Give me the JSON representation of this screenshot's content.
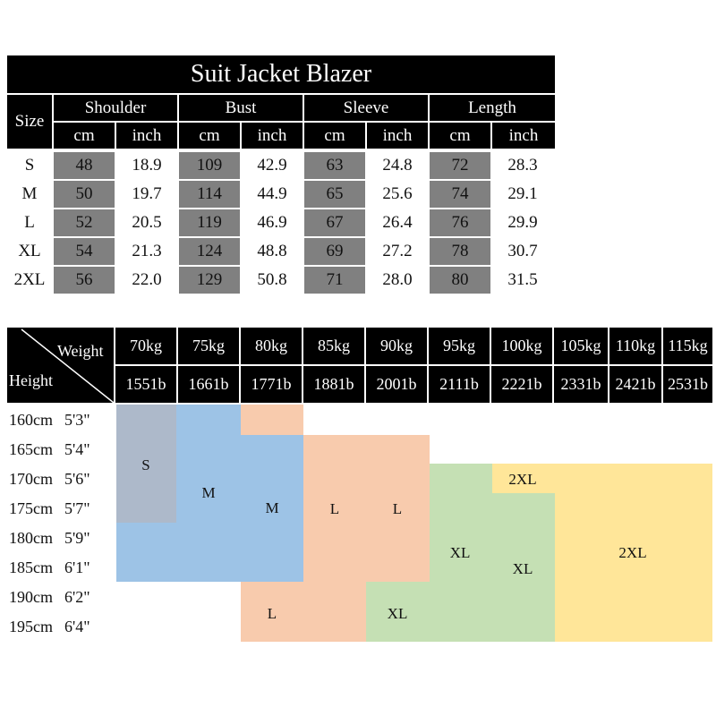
{
  "title": "Suit Jacket Blazer",
  "size_header": "Size",
  "groups": [
    "Shoulder",
    "Bust",
    "Sleeve",
    "Length"
  ],
  "units": [
    "cm",
    "inch"
  ],
  "rows": [
    {
      "size": "S",
      "values": [
        "48",
        "18.9",
        "109",
        "42.9",
        "63",
        "24.8",
        "72",
        "28.3"
      ]
    },
    {
      "size": "M",
      "values": [
        "50",
        "19.7",
        "114",
        "44.9",
        "65",
        "25.6",
        "74",
        "29.1"
      ]
    },
    {
      "size": "L",
      "values": [
        "52",
        "20.5",
        "119",
        "46.9",
        "67",
        "26.4",
        "76",
        "29.9"
      ]
    },
    {
      "size": "XL",
      "values": [
        "54",
        "21.3",
        "124",
        "48.8",
        "69",
        "27.2",
        "78",
        "30.7"
      ]
    },
    {
      "size": "2XL",
      "values": [
        "56",
        "22.0",
        "129",
        "50.8",
        "71",
        "28.0",
        "80",
        "31.5"
      ]
    }
  ],
  "chart": {
    "weight_label": "Weight",
    "height_label": "Height",
    "weights_kg": [
      "70kg",
      "75kg",
      "80kg",
      "85kg",
      "90kg",
      "95kg",
      "100kg",
      "105kg",
      "110kg",
      "115kg"
    ],
    "weights_lb": [
      "1551b",
      "1661b",
      "1771b",
      "1881b",
      "2001b",
      "2111b",
      "2221b",
      "2331b",
      "2421b",
      "2531b"
    ],
    "heights": [
      {
        "cm": "160cm",
        "ft": "5'3\""
      },
      {
        "cm": "165cm",
        "ft": "5'4\""
      },
      {
        "cm": "170cm",
        "ft": "5'6\""
      },
      {
        "cm": "175cm",
        "ft": "5'7\""
      },
      {
        "cm": "180cm",
        "ft": "5'9\""
      },
      {
        "cm": "185cm",
        "ft": "6'1\""
      },
      {
        "cm": "190cm",
        "ft": "6'2\""
      },
      {
        "cm": "195cm",
        "ft": "6'4\""
      }
    ],
    "colors": {
      "S": "#adb9ca",
      "M": "#9dc3e6",
      "L": "#f8cbad",
      "XL": "#c5e0b4",
      "2XL": "#ffe699"
    },
    "zone_labels": [
      "S",
      "M",
      "M",
      "L",
      "L",
      "L",
      "XL",
      "XL",
      "XL",
      "2XL",
      "2XL"
    ]
  }
}
